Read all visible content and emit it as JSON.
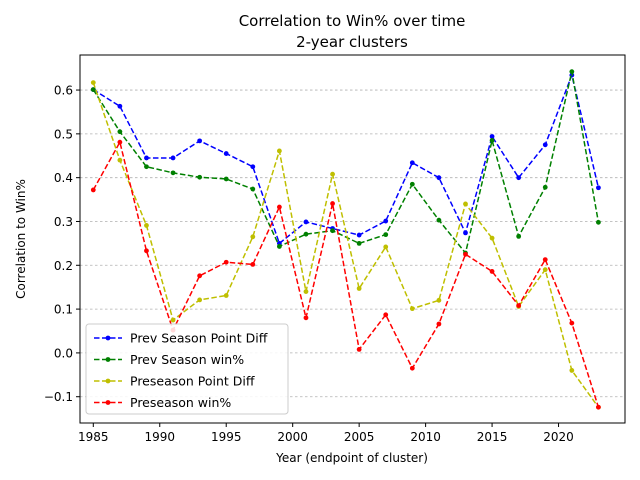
{
  "chart_data": {
    "type": "line",
    "title": "Correlation to Win% over time",
    "subtitle": "2-year clusters",
    "xlabel": "Year (endpoint of cluster)",
    "ylabel": "Correlation to Win%",
    "xlim": [
      1984,
      2025
    ],
    "ylim": [
      -0.16,
      0.68
    ],
    "xticks": [
      1985,
      1990,
      1995,
      2000,
      2005,
      2010,
      2015,
      2020
    ],
    "yticks": [
      -0.1,
      0.0,
      0.1,
      0.2,
      0.3,
      0.4,
      0.5,
      0.6
    ],
    "ytick_labels": [
      "−0.1",
      "0.0",
      "0.1",
      "0.2",
      "0.3",
      "0.4",
      "0.5",
      "0.6"
    ],
    "grid": "y-dashed",
    "legend_position": "lower-left",
    "x": [
      1985,
      1987,
      1989,
      1991,
      1993,
      1995,
      1997,
      1999,
      2001,
      2003,
      2005,
      2007,
      2009,
      2011,
      2013,
      2015,
      2017,
      2019,
      2021,
      2023
    ],
    "series": [
      {
        "name": "Prev Season Point Diff",
        "color": "#0000ff",
        "values": [
          0.601,
          0.563,
          0.445,
          0.445,
          0.484,
          0.455,
          0.425,
          0.25,
          0.299,
          0.284,
          0.269,
          0.301,
          0.434,
          0.4,
          0.274,
          0.494,
          0.4,
          0.475,
          0.634,
          0.377
        ]
      },
      {
        "name": "Prev Season win%",
        "color": "#008000",
        "values": [
          0.601,
          0.505,
          0.425,
          0.411,
          0.401,
          0.397,
          0.374,
          0.243,
          0.271,
          0.279,
          0.25,
          0.27,
          0.385,
          0.303,
          0.228,
          0.485,
          0.266,
          0.378,
          0.642,
          0.298
        ]
      },
      {
        "name": "Preseason Point Diff",
        "color": "#bfbf00",
        "values": [
          0.617,
          0.44,
          0.291,
          0.075,
          0.121,
          0.131,
          0.265,
          0.461,
          0.14,
          0.408,
          0.147,
          0.242,
          0.101,
          0.12,
          0.34,
          0.262,
          0.106,
          0.19,
          -0.04,
          -0.124
        ]
      },
      {
        "name": "Preseason win%",
        "color": "#ff0000",
        "values": [
          0.372,
          0.481,
          0.233,
          0.052,
          0.176,
          0.207,
          0.202,
          0.333,
          0.08,
          0.341,
          0.008,
          0.087,
          -0.035,
          0.066,
          0.225,
          0.186,
          0.108,
          0.213,
          0.068,
          -0.124
        ]
      }
    ]
  }
}
